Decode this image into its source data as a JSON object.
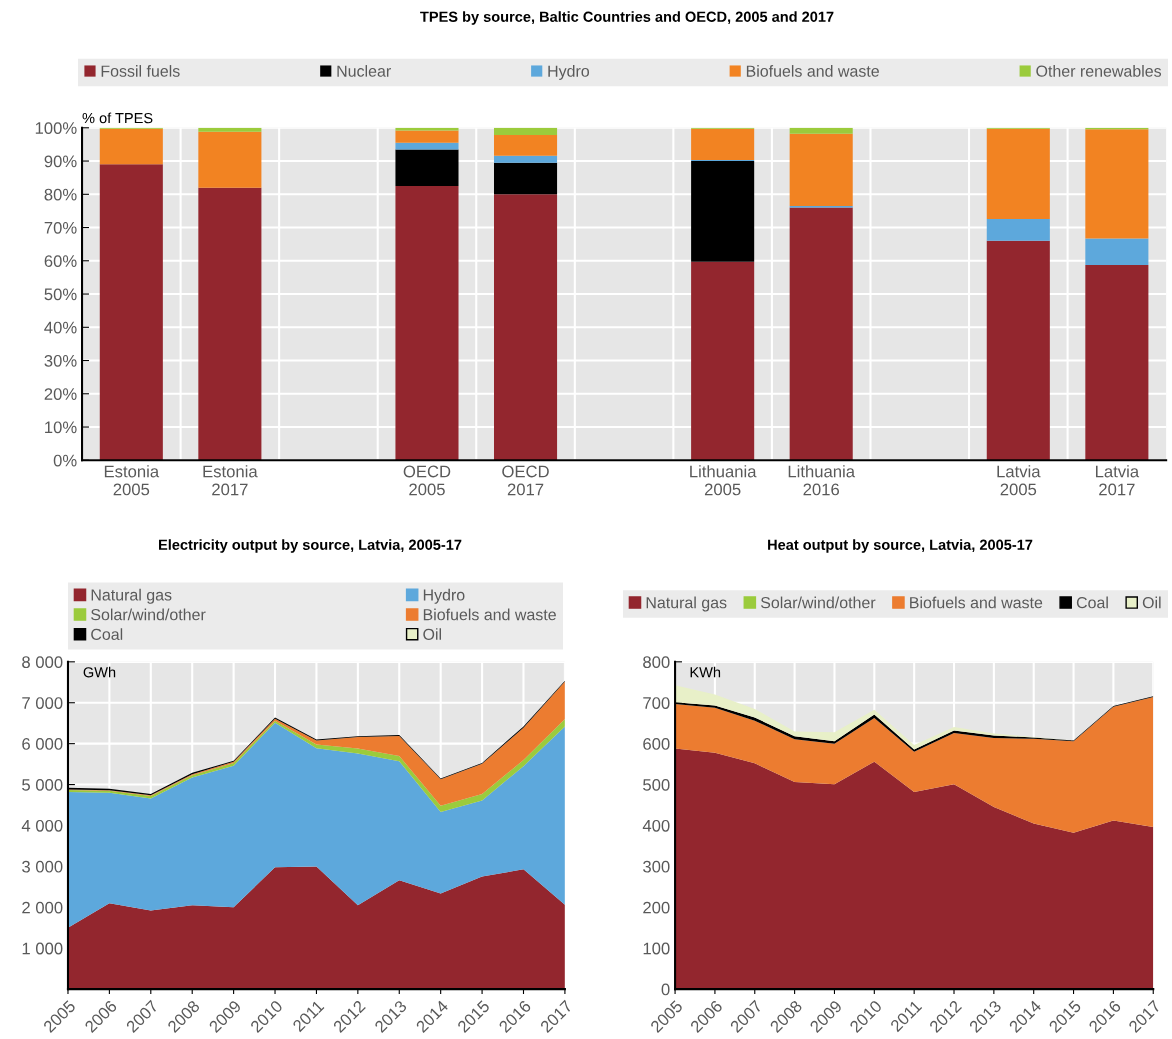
{
  "chart_data": [
    {
      "type": "bar",
      "title": "TPES by source, Baltic Countries and OECD, 2005 and 2017",
      "ylabel": "% of TPES",
      "stacked": true,
      "legend": "top",
      "grid": true,
      "categories": [
        "Estonia\n2005",
        "Estonia\n2017",
        null,
        "OECD\n2005",
        "OECD\n2017",
        null,
        "Lithuania\n2005",
        "Lithuania\n2016",
        null,
        "Latvia\n2005",
        "Latvia\n2017"
      ],
      "ylim": [
        0,
        100
      ],
      "yticks": [
        {
          "value": 0,
          "label": "0%"
        },
        {
          "value": 10,
          "label": "10%"
        },
        {
          "value": 20,
          "label": "20%"
        },
        {
          "value": 30,
          "label": "30%"
        },
        {
          "value": 40,
          "label": "40%"
        },
        {
          "value": 50,
          "label": "50%"
        },
        {
          "value": 60,
          "label": "60%"
        },
        {
          "value": 70,
          "label": "70%"
        },
        {
          "value": 80,
          "label": "80%"
        },
        {
          "value": 90,
          "label": "90%"
        },
        {
          "value": 100,
          "label": "100%"
        }
      ],
      "series": [
        {
          "name": "Fossil fuels",
          "color": "#93262e",
          "values": [
            89,
            82,
            null,
            82.5,
            80,
            null,
            59.7,
            76,
            null,
            66,
            58.7
          ]
        },
        {
          "name": "Nuclear",
          "color": "#000000",
          "values": [
            0,
            0,
            null,
            11,
            9.5,
            null,
            30.3,
            0,
            null,
            0,
            0
          ]
        },
        {
          "name": "Hydro",
          "color": "#5da8dc",
          "values": [
            0,
            0,
            null,
            2,
            2.1,
            null,
            0.3,
            0.5,
            null,
            6.6,
            8
          ]
        },
        {
          "name": "Biofuels and waste",
          "color": "#f28322",
          "values": [
            10.7,
            16.8,
            null,
            3.7,
            6.2,
            null,
            9.4,
            21.7,
            null,
            27.1,
            32.9
          ]
        },
        {
          "name": "Other renewables",
          "color": "#9bcb3c",
          "values": [
            0.3,
            1.2,
            null,
            0.8,
            2.2,
            null,
            0.3,
            1.8,
            null,
            0.3,
            0.4
          ]
        }
      ]
    },
    {
      "type": "area",
      "title": "Electricity output by source, Latvia, 2005-17",
      "ylabel": "GWh",
      "stacked": true,
      "legend": "top",
      "grid": true,
      "x": [
        2005,
        2006,
        2007,
        2008,
        2009,
        2010,
        2011,
        2012,
        2013,
        2014,
        2015,
        2016,
        2017
      ],
      "xlim": [
        2005,
        2017
      ],
      "xticks": [
        2005,
        2006,
        2007,
        2008,
        2009,
        2010,
        2011,
        2012,
        2013,
        2014,
        2015,
        2016,
        2017
      ],
      "ylim": [
        0,
        8000
      ],
      "yticks": [
        {
          "value": 1000,
          "label": "1 000"
        },
        {
          "value": 2000,
          "label": "2 000"
        },
        {
          "value": 3000,
          "label": "3 000"
        },
        {
          "value": 4000,
          "label": "4 000"
        },
        {
          "value": 5000,
          "label": "5 000"
        },
        {
          "value": 6000,
          "label": "6 000"
        },
        {
          "value": 7000,
          "label": "7 000"
        },
        {
          "value": 8000,
          "label": "8 000"
        }
      ],
      "series": [
        {
          "name": "Natural gas",
          "color": "#93262e",
          "values": [
            1500,
            2100,
            1920,
            2050,
            2000,
            2980,
            3000,
            2050,
            2660,
            2340,
            2750,
            2930,
            2060
          ]
        },
        {
          "name": "Hydro",
          "color": "#5da8dc",
          "values": [
            3320,
            2700,
            2740,
            3120,
            3460,
            3530,
            2890,
            3710,
            2910,
            1990,
            1860,
            2520,
            4360
          ]
        },
        {
          "name": "Solar/wind/other",
          "color": "#9bcb3c",
          "values": [
            50,
            50,
            60,
            60,
            70,
            50,
            90,
            120,
            130,
            150,
            160,
            150,
            180
          ]
        },
        {
          "name": "Biofuels and waste",
          "color": "#ec7c30",
          "values": [
            10,
            10,
            20,
            20,
            30,
            50,
            100,
            280,
            490,
            650,
            740,
            790,
            920
          ]
        },
        {
          "name": "Coal",
          "color": "#000000",
          "values": [
            40,
            40,
            30,
            40,
            20,
            30,
            20,
            20,
            20,
            20,
            20,
            30,
            20
          ]
        },
        {
          "name": "Oil",
          "color": "#e8f0c8",
          "values": [
            null,
            null,
            null,
            null,
            null,
            null,
            null,
            null,
            null,
            null,
            null,
            null,
            null
          ]
        }
      ]
    },
    {
      "type": "area",
      "title": "Heat output by source, Latvia, 2005-17",
      "ylabel": "KWh",
      "stacked": true,
      "legend": "top",
      "grid": true,
      "x": [
        2005,
        2006,
        2007,
        2008,
        2009,
        2010,
        2011,
        2012,
        2013,
        2014,
        2015,
        2016,
        2017
      ],
      "xlim": [
        2005,
        2017
      ],
      "xticks": [
        2005,
        2006,
        2007,
        2008,
        2009,
        2010,
        2011,
        2012,
        2013,
        2014,
        2015,
        2016,
        2017
      ],
      "ylim": [
        0,
        800
      ],
      "yticks": [
        0,
        100,
        200,
        300,
        400,
        500,
        600,
        700,
        800
      ],
      "series": [
        {
          "name": "Natural gas",
          "color": "#93262e",
          "values": [
            588,
            578,
            552,
            506,
            501,
            556,
            482,
            501,
            445,
            405,
            382,
            412,
            396
          ]
        },
        {
          "name": "Solar/wind/other",
          "color": "#9bcb3c",
          "values": [
            null,
            null,
            null,
            null,
            null,
            null,
            null,
            null,
            null,
            null,
            null,
            null,
            null
          ]
        },
        {
          "name": "Biofuels and waste",
          "color": "#ec7c30",
          "values": [
            109,
            110,
            104,
            105,
            99,
            107,
            98,
            125,
            169,
            207,
            224,
            278,
            318
          ]
        },
        {
          "name": "Coal",
          "color": "#000000",
          "values": [
            4,
            5,
            8,
            7,
            6,
            8,
            6,
            6,
            6,
            3,
            2,
            2,
            2
          ]
        },
        {
          "name": "Oil",
          "color": "#e8f0c8",
          "values": [
            42,
            27,
            21,
            12,
            22,
            12,
            11,
            9,
            5,
            1,
            0,
            0,
            0
          ]
        }
      ]
    }
  ]
}
